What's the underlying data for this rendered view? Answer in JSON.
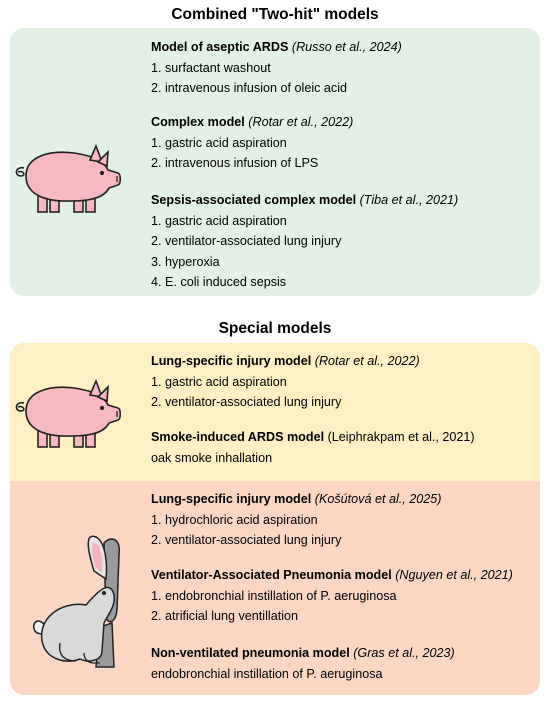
{
  "combined": {
    "title": "Combined \"Two-hit\" models",
    "models": [
      {
        "name": "Model of aseptic ARDS",
        "citation": "(Russo et al., 2024)",
        "steps": [
          "1. surfactant washout",
          "2. intravenous infusion of oleic acid"
        ]
      },
      {
        "name": "Complex model",
        "citation": "(Rotar et al., 2022)",
        "steps": [
          "1. gastric acid aspiration",
          "2. intravenous infusion of LPS"
        ]
      },
      {
        "name": "Sepsis-associated complex model",
        "citation": "(Tiba et al., 2021)",
        "steps": [
          "1. gastric acid aspiration",
          "2. ventilator-associated lung injury",
          "3. hyperoxia",
          "4. E. coli induced sepsis"
        ]
      }
    ]
  },
  "special": {
    "title": "Special models",
    "pig_models": [
      {
        "name": "Lung-specific injury model",
        "citation": "(Rotar et al., 2022)",
        "steps": [
          "1. gastric acid aspiration",
          "2. ventilator-associated lung injury"
        ]
      },
      {
        "name": "Smoke-induced ARDS model",
        "citation": "(Leiphrakpam et al., 2021)",
        "steps": [
          "oak smoke inhallation"
        ]
      }
    ],
    "rabbit_models": [
      {
        "name": "Lung-specific injury model",
        "citation": "(Košútová et al., 2025)",
        "steps": [
          "1. hydrochloric acid aspiration",
          "2. ventilator-associated lung injury"
        ]
      },
      {
        "name": "Ventilator-Associated Pneumonia model",
        "citation": "(Nguyen et al., 2021)",
        "steps": [
          "1. endobronchial instillation of P. aeruginosa",
          "2. atrificial lung ventillation"
        ]
      },
      {
        "name": "Non-ventilated pneumonia model",
        "citation": "(Gras et al., 2023)",
        "steps": [
          "endobronchial instillation of P. aeruginosa"
        ]
      }
    ]
  },
  "icons": {
    "combined_animal": "pig-icon",
    "special_pig_animal": "pig-icon",
    "special_rabbit_animal": "rabbit-icon"
  },
  "colors": {
    "green_panel": "#e3f0e6",
    "yellow_panel": "#fdf0c5",
    "orange_panel": "#fbd6c2",
    "pig": "#f6b9c0",
    "rabbit": "#d9d9d9"
  }
}
